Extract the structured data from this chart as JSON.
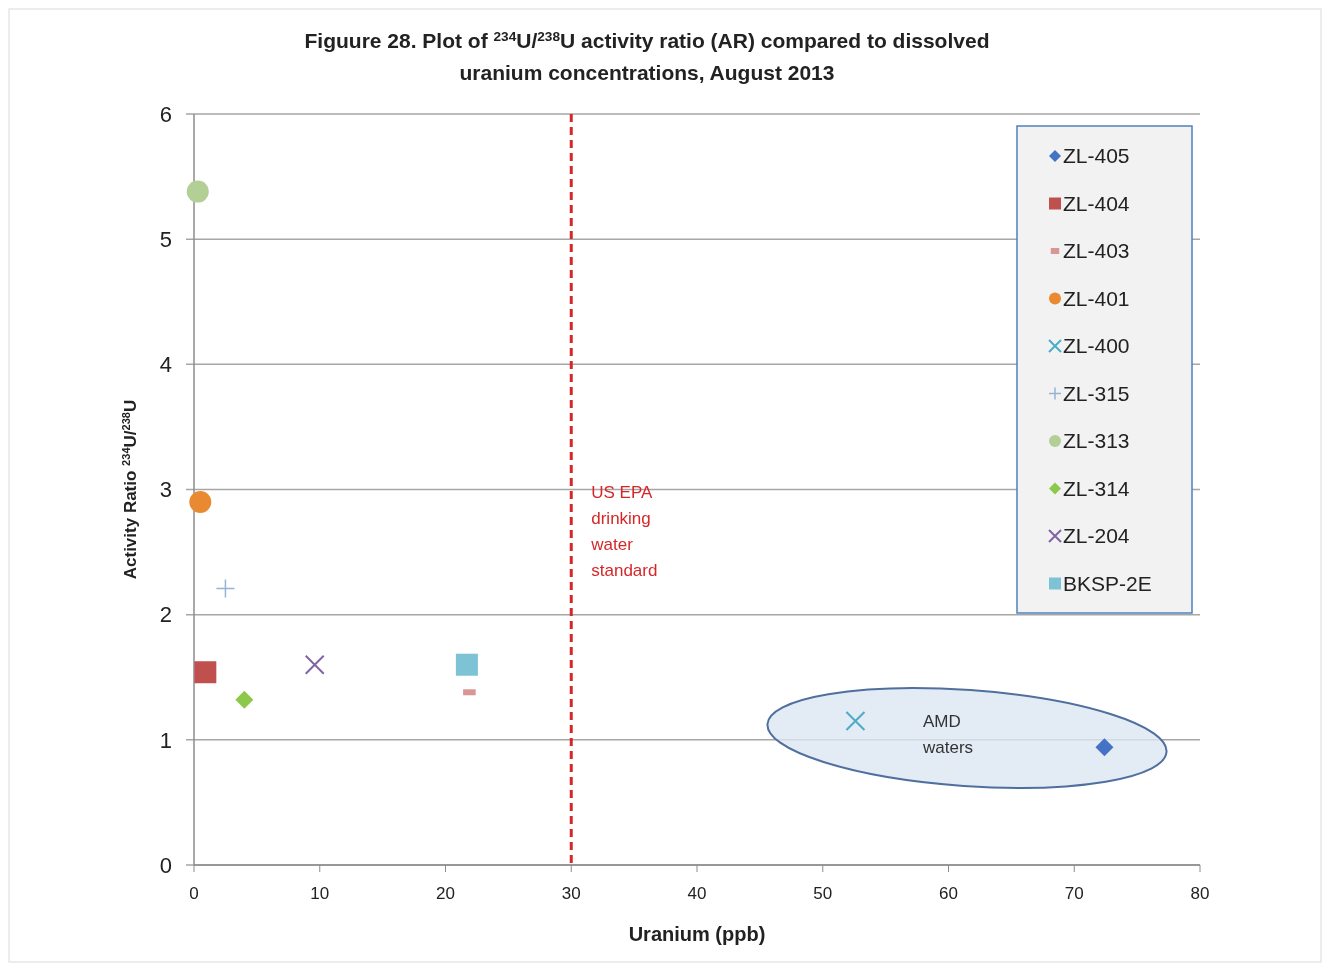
{
  "chart_data": {
    "type": "scatter",
    "title": "Figuure 28. Plot of $^{234}$U/$^{238}$U activity ratio (AR) compared to dissolved uranium concentrations, August 2013",
    "xlabel": "Uranium (ppb)",
    "ylabel": "Activity Ratio $^{234}$U/$^{238}$U",
    "xlim": [
      0,
      80
    ],
    "xticks": [
      0,
      10,
      20,
      30,
      40,
      50,
      60,
      70,
      80
    ],
    "ylim": [
      0,
      6
    ],
    "yticks": [
      0,
      1,
      2,
      3,
      4,
      5,
      6
    ],
    "grid": "y",
    "legend": "top right",
    "series": [
      {
        "name": "ZL-405",
        "color": "#4472c4",
        "marker": "diamond",
        "x": [
          72.4
        ],
        "values": [
          0.94
        ]
      },
      {
        "name": "ZL-404",
        "color": "#c0504d",
        "marker": "square",
        "x": [
          0.9
        ],
        "values": [
          1.54
        ]
      },
      {
        "name": "ZL-403",
        "color": "#d99694",
        "x": [
          21.9
        ],
        "values": [
          1.38
        ]
      },
      {
        "name": "ZL-401",
        "color": "#e98a33",
        "marker": "circle",
        "x": [
          0.5
        ],
        "values": [
          2.9
        ]
      },
      {
        "name": "ZL-400",
        "color": "#4bacc6",
        "marker": "cross",
        "x": [
          52.6
        ],
        "values": [
          1.15
        ]
      },
      {
        "name": "ZL-315",
        "color": "#95b3d7",
        "marker": "plus",
        "x": [
          2.5
        ],
        "values": [
          2.21
        ]
      },
      {
        "name": "ZL-313",
        "color": "#b3cf95",
        "marker": "circle",
        "x": [
          0.3
        ],
        "values": [
          5.38
        ]
      },
      {
        "name": "ZL-314",
        "color": "#8cc84b",
        "marker": "diamond",
        "x": [
          4.0
        ],
        "values": [
          1.32
        ]
      },
      {
        "name": "ZL-204",
        "color": "#8064a2",
        "marker": "cross",
        "x": [
          9.6
        ],
        "values": [
          1.6
        ]
      },
      {
        "name": "BKSP-2E",
        "color": "#7ec2d6",
        "marker": "square",
        "x": [
          21.7
        ],
        "values": [
          1.6
        ]
      }
    ],
    "ref_lines": [
      {
        "axis": "x",
        "value": 30,
        "label": "US EPA drinking water standard",
        "color": "#d62728",
        "line_style": "dashed"
      }
    ],
    "annotations": [
      "AMD waters"
    ]
  }
}
